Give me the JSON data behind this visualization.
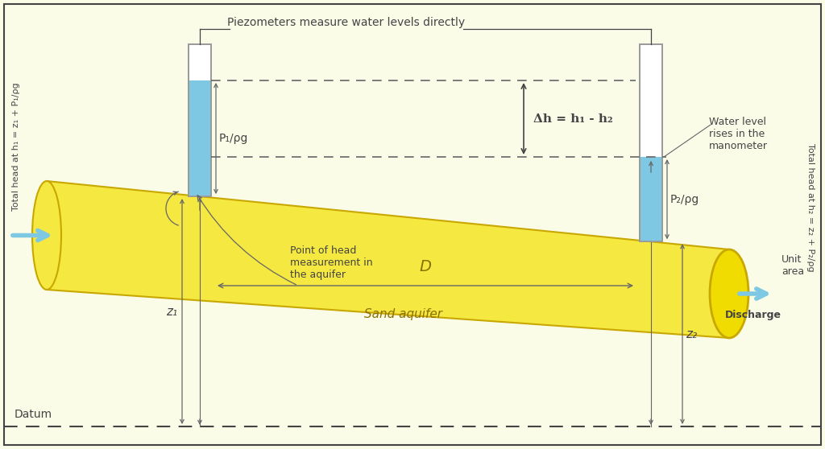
{
  "bg_color": "#FAFCE8",
  "tube_yellow": "#F5E840",
  "tube_edge": "#C8A800",
  "tube_end_yellow": "#F0DC00",
  "water_blue": "#7EC8E3",
  "arrow_blue": "#7EC8E3",
  "dark": "#444444",
  "mid": "#666666",
  "light_border": "#999999",
  "title_text": "Piezometers measure water levels directly",
  "label_D": "D",
  "label_datum": "Datum",
  "label_sand": "Sand aquifer",
  "label_discharge": "Discharge",
  "label_unit_area": "Unit\narea",
  "label_delta_h": "Δh = h₁ - h₂",
  "label_P1": "P₁/ρg",
  "label_P2": "P₂/ρg",
  "label_z1": "z₁",
  "label_z2": "z₂",
  "label_h1": "Total head at h₁ = z₁ + P₁/ρg",
  "label_h2": "Total head at h₂ = z₂ + P₂/ρg",
  "label_point": "Point of head\nmeasurement in\nthe aquifer",
  "label_water_rises": "Water level\nrises in the\nmanometer",
  "figsize": [
    10.24,
    5.58
  ],
  "dpi": 100
}
